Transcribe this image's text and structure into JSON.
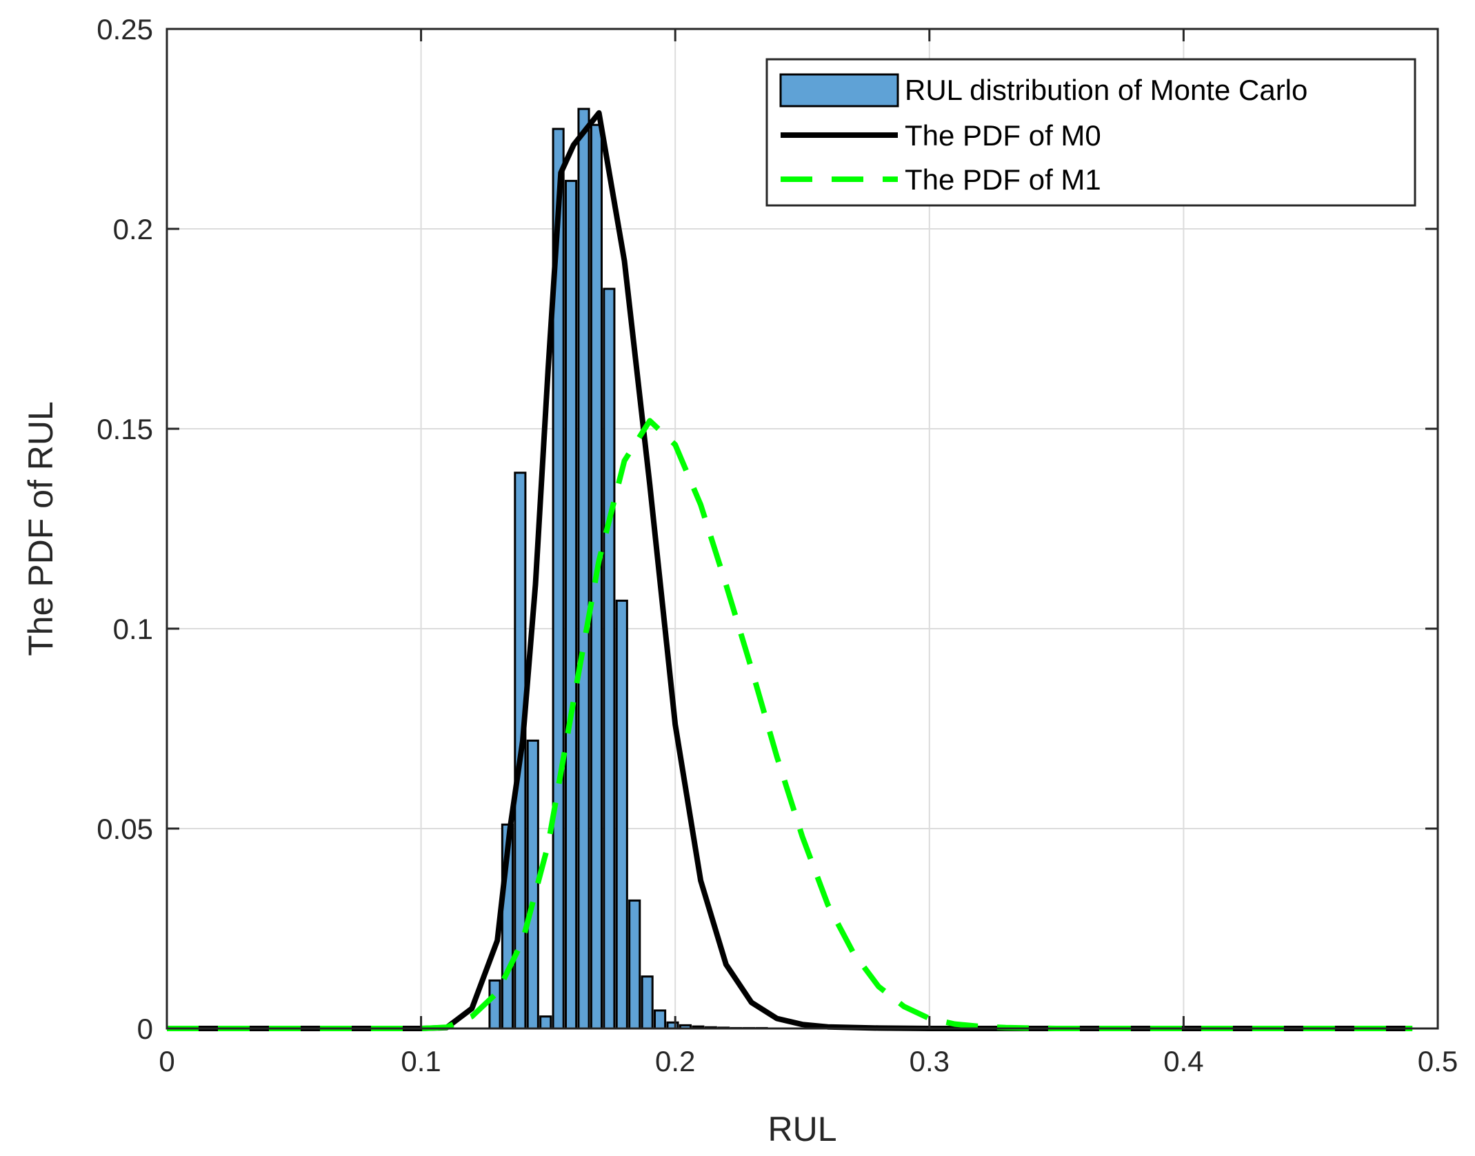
{
  "chart_data": {
    "type": "bar",
    "title": "",
    "xlabel": "RUL",
    "ylabel": "The PDF of RUL",
    "xlim": [
      0,
      0.5
    ],
    "ylim": [
      0,
      0.25
    ],
    "x_ticks": [
      0,
      0.1,
      0.2,
      0.3,
      0.4,
      0.5
    ],
    "x_tick_labels": [
      "0",
      "0.1",
      "0.2",
      "0.3",
      "0.4",
      "0.5"
    ],
    "y_ticks": [
      0,
      0.05,
      0.1,
      0.15,
      0.2,
      0.25
    ],
    "y_tick_labels": [
      "0",
      "0.05",
      "0.1",
      "0.15",
      "0.2",
      "0.25"
    ],
    "grid": true,
    "legend_position": "top-right",
    "histogram": {
      "name": "RUL distribution of Monte Carlo",
      "color": "#5fa2d6",
      "edge_color": "#000000",
      "bin_width": 0.005,
      "centers": [
        0.129,
        0.134,
        0.139,
        0.144,
        0.149,
        0.154,
        0.159,
        0.164,
        0.169,
        0.174,
        0.179,
        0.184,
        0.189,
        0.194,
        0.199,
        0.204,
        0.209,
        0.214,
        0.219,
        0.224,
        0.229,
        0.234
      ],
      "values": [
        0.012,
        0.051,
        0.139,
        0.072,
        0.003,
        0.225,
        0.212,
        0.23,
        0.226,
        0.185,
        0.107,
        0.032,
        0.013,
        0.0045,
        0.0015,
        0.0008,
        0.0005,
        0.0003,
        0.0002,
        0.0001,
        0.0001,
        0.0001
      ]
    },
    "series": [
      {
        "name": "The PDF of M0",
        "color": "#000000",
        "style": "solid",
        "x": [
          0,
          0.01,
          0.02,
          0.03,
          0.04,
          0.05,
          0.06,
          0.07,
          0.08,
          0.09,
          0.1,
          0.11,
          0.12,
          0.13,
          0.135,
          0.14,
          0.145,
          0.15,
          0.155,
          0.16,
          0.165,
          0.17,
          0.18,
          0.19,
          0.2,
          0.21,
          0.22,
          0.23,
          0.24,
          0.25,
          0.26,
          0.28,
          0.3,
          0.35,
          0.4,
          0.45,
          0.49
        ],
        "values": [
          0,
          0,
          0,
          0,
          0,
          0,
          0,
          0,
          0,
          0,
          0,
          0.0002,
          0.005,
          0.022,
          0.05,
          0.072,
          0.111,
          0.165,
          0.214,
          0.221,
          0.225,
          0.229,
          0.192,
          0.136,
          0.076,
          0.037,
          0.016,
          0.0065,
          0.0025,
          0.001,
          0.0004,
          0.0001,
          0,
          0,
          0,
          0,
          0
        ]
      },
      {
        "name": "The PDF of M1",
        "color": "#00ff00",
        "style": "dashed",
        "x": [
          0,
          0.05,
          0.1,
          0.11,
          0.12,
          0.13,
          0.14,
          0.15,
          0.16,
          0.17,
          0.18,
          0.19,
          0.2,
          0.21,
          0.22,
          0.23,
          0.24,
          0.25,
          0.26,
          0.27,
          0.28,
          0.29,
          0.3,
          0.31,
          0.32,
          0.33,
          0.35,
          0.4,
          0.45,
          0.49
        ],
        "values": [
          0,
          0,
          0,
          0.0003,
          0.003,
          0.009,
          0.022,
          0.046,
          0.082,
          0.117,
          0.142,
          0.152,
          0.146,
          0.131,
          0.111,
          0.09,
          0.068,
          0.048,
          0.031,
          0.019,
          0.0105,
          0.0055,
          0.0025,
          0.0011,
          0.0005,
          0.0002,
          0,
          0,
          0,
          0
        ]
      }
    ]
  }
}
